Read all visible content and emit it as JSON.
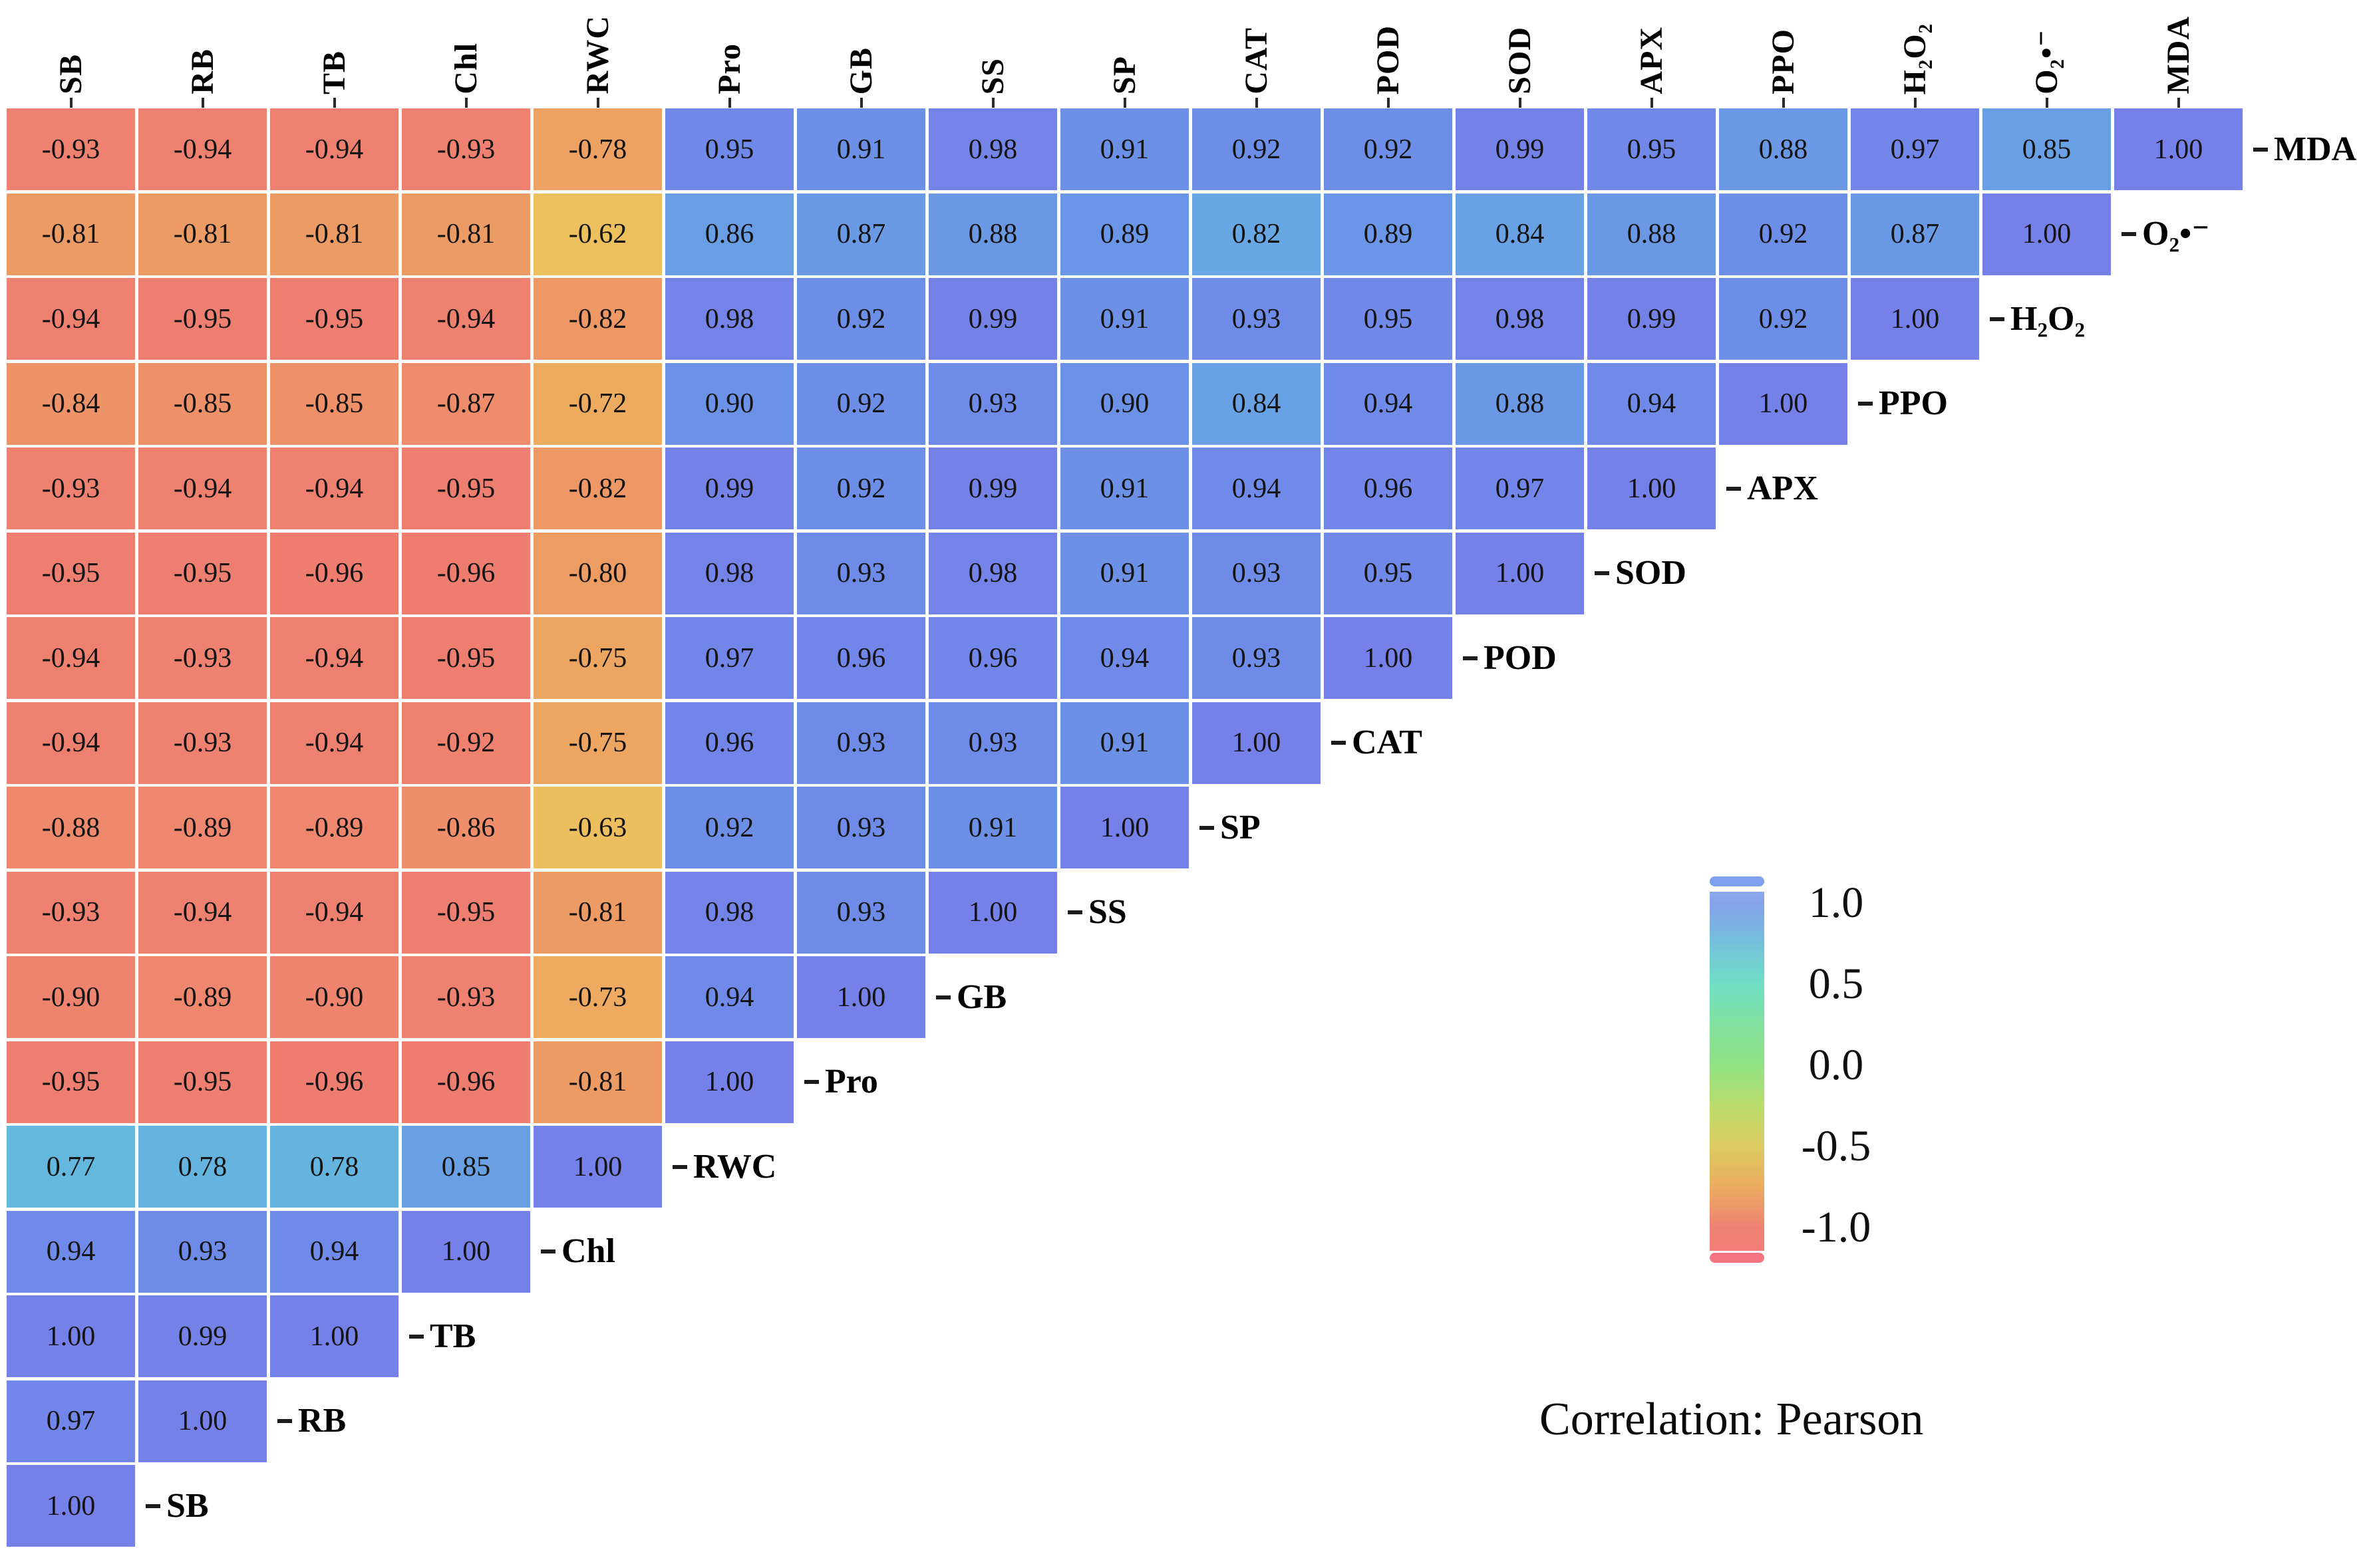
{
  "chart_data": {
    "type": "heatmap",
    "subtype": "pearson-correlation-lower-triangle",
    "caption": "Correlation: Pearson",
    "variables": [
      "SB",
      "RB",
      "TB",
      "Chl",
      "RWC",
      "Pro",
      "GB",
      "SS",
      "SP",
      "CAT",
      "POD",
      "SOD",
      "APX",
      "PPO",
      "H₂O₂",
      "O₂•⁻",
      "MDA"
    ],
    "rows": [
      {
        "label": "MDA",
        "values": [
          -0.93,
          -0.94,
          -0.94,
          -0.93,
          -0.78,
          0.95,
          0.91,
          0.98,
          0.91,
          0.92,
          0.92,
          0.99,
          0.95,
          0.88,
          0.97,
          0.85,
          1.0
        ]
      },
      {
        "label": "O₂•⁻",
        "values": [
          -0.81,
          -0.81,
          -0.81,
          -0.81,
          -0.62,
          0.86,
          0.87,
          0.88,
          0.89,
          0.82,
          0.89,
          0.84,
          0.88,
          0.92,
          0.87,
          1.0
        ]
      },
      {
        "label": "H₂O₂",
        "values": [
          -0.94,
          -0.95,
          -0.95,
          -0.94,
          -0.82,
          0.98,
          0.92,
          0.99,
          0.91,
          0.93,
          0.95,
          0.98,
          0.99,
          0.92,
          1.0
        ]
      },
      {
        "label": "PPO",
        "values": [
          -0.84,
          -0.85,
          -0.85,
          -0.87,
          -0.72,
          0.9,
          0.92,
          0.93,
          0.9,
          0.84,
          0.94,
          0.88,
          0.94,
          1.0
        ]
      },
      {
        "label": "APX",
        "values": [
          -0.93,
          -0.94,
          -0.94,
          -0.95,
          -0.82,
          0.99,
          0.92,
          0.99,
          0.91,
          0.94,
          0.96,
          0.97,
          1.0
        ]
      },
      {
        "label": "SOD",
        "values": [
          -0.95,
          -0.95,
          -0.96,
          -0.96,
          -0.8,
          0.98,
          0.93,
          0.98,
          0.91,
          0.93,
          0.95,
          1.0
        ]
      },
      {
        "label": "POD",
        "values": [
          -0.94,
          -0.93,
          -0.94,
          -0.95,
          -0.75,
          0.97,
          0.96,
          0.96,
          0.94,
          0.93,
          1.0
        ]
      },
      {
        "label": "CAT",
        "values": [
          -0.94,
          -0.93,
          -0.94,
          -0.92,
          -0.75,
          0.96,
          0.93,
          0.93,
          0.91,
          1.0
        ]
      },
      {
        "label": "SP",
        "values": [
          -0.88,
          -0.89,
          -0.89,
          -0.86,
          -0.63,
          0.92,
          0.93,
          0.91,
          1.0
        ]
      },
      {
        "label": "SS",
        "values": [
          -0.93,
          -0.94,
          -0.94,
          -0.95,
          -0.81,
          0.98,
          0.93,
          1.0
        ]
      },
      {
        "label": "GB",
        "values": [
          -0.9,
          -0.89,
          -0.9,
          -0.93,
          -0.73,
          0.94,
          1.0
        ]
      },
      {
        "label": "Pro",
        "values": [
          -0.95,
          -0.95,
          -0.96,
          -0.96,
          -0.81,
          1.0
        ]
      },
      {
        "label": "RWC",
        "values": [
          0.77,
          0.78,
          0.78,
          0.85,
          1.0
        ]
      },
      {
        "label": "Chl",
        "values": [
          0.94,
          0.93,
          0.94,
          1.0
        ]
      },
      {
        "label": "TB",
        "values": [
          1.0,
          0.99,
          1.0
        ]
      },
      {
        "label": "RB",
        "values": [
          0.97,
          1.0
        ]
      },
      {
        "label": "SB",
        "values": [
          1.0
        ]
      }
    ],
    "value_format": "2-decimals",
    "grid_gap_color": "#FFFFFF",
    "cell_text_color": "#141414",
    "cell_colormap": [
      {
        "v": -1.0,
        "c": "#EE7971"
      },
      {
        "v": -0.9,
        "c": "#EE846E"
      },
      {
        "v": -0.8,
        "c": "#ED9D63"
      },
      {
        "v": -0.7,
        "c": "#EDAF5F"
      },
      {
        "v": -0.6,
        "c": "#ECC45D"
      },
      {
        "v": -0.4,
        "c": "#CFD666"
      },
      {
        "v": -0.2,
        "c": "#A8DE75"
      },
      {
        "v": 0.0,
        "c": "#8FE083"
      },
      {
        "v": 0.3,
        "c": "#7BE2B0"
      },
      {
        "v": 0.5,
        "c": "#70DCC8"
      },
      {
        "v": 0.7,
        "c": "#67C9D7"
      },
      {
        "v": 0.75,
        "c": "#63C0DC"
      },
      {
        "v": 0.8,
        "c": "#66ACE2"
      },
      {
        "v": 0.85,
        "c": "#69A0E4"
      },
      {
        "v": 0.9,
        "c": "#6B92E6"
      },
      {
        "v": 0.95,
        "c": "#7088E8"
      },
      {
        "v": 1.0,
        "c": "#7580E8"
      }
    ],
    "legend": {
      "range": [
        -1,
        1
      ],
      "position": "right-middle",
      "ticks": [
        "1.0",
        "0.5",
        "0.0",
        "-0.5",
        "-1.0"
      ],
      "cap_top_color": "#7EA0EF",
      "cap_bottom_color": "#F4757F",
      "gradient": [
        {
          "p": 0.0,
          "c": "#8CA8EC"
        },
        {
          "p": 0.031,
          "c": "#85A1EA"
        },
        {
          "p": 0.14,
          "c": "#74C0DC"
        },
        {
          "p": 0.257,
          "c": "#70DFC5"
        },
        {
          "p": 0.37,
          "c": "#82E19E"
        },
        {
          "p": 0.483,
          "c": "#90E283"
        },
        {
          "p": 0.6,
          "c": "#BCDC6C"
        },
        {
          "p": 0.709,
          "c": "#DCCB61"
        },
        {
          "p": 0.82,
          "c": "#EBAC60"
        },
        {
          "p": 0.935,
          "c": "#EF8273"
        },
        {
          "p": 1.0,
          "c": "#F07D76"
        }
      ]
    }
  }
}
